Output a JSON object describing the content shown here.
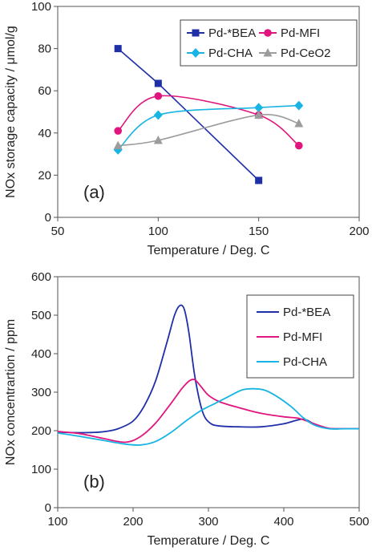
{
  "chart_data": [
    {
      "type": "line",
      "panel_label": "(a)",
      "xlabel": "Temperature / Deg. C",
      "ylabel": "NOx storage capacity / μmol/g",
      "xlim": [
        50,
        200
      ],
      "ylim": [
        0,
        100
      ],
      "xticks": [
        50,
        100,
        150,
        200
      ],
      "yticks": [
        0,
        20,
        40,
        60,
        80,
        100
      ],
      "grid": false,
      "legend": "top-right",
      "series": [
        {
          "name": "Pd-*BEA",
          "color": "#1f2fa8",
          "marker": "square",
          "smooth": false,
          "x": [
            80,
            100,
            150
          ],
          "y": [
            80,
            63.5,
            17.5
          ]
        },
        {
          "name": "Pd-MFI",
          "color": "#e0157d",
          "marker": "circle",
          "smooth": true,
          "x": [
            80,
            100,
            150,
            170
          ],
          "y": [
            41,
            57.5,
            48.5,
            34
          ]
        },
        {
          "name": "Pd-CHA",
          "color": "#18b4e4",
          "marker": "diamond",
          "smooth": true,
          "x": [
            80,
            100,
            150,
            170
          ],
          "y": [
            32,
            48.5,
            52,
            53
          ]
        },
        {
          "name": "Pd-CeO2",
          "color": "#9c9c9c",
          "marker": "triangle",
          "smooth": true,
          "x": [
            80,
            100,
            150,
            170
          ],
          "y": [
            34,
            36.5,
            48.5,
            44.5
          ]
        }
      ]
    },
    {
      "type": "line",
      "panel_label": "(b)",
      "xlabel": "Temperature / Deg. C",
      "ylabel": "NOx concentrartion / ppm",
      "xlim": [
        100,
        500
      ],
      "ylim": [
        0,
        600
      ],
      "xticks": [
        100,
        200,
        300,
        400,
        500
      ],
      "yticks": [
        0,
        100,
        200,
        300,
        400,
        500,
        600
      ],
      "grid": false,
      "legend": "top-right",
      "series": [
        {
          "name": "Pd-*BEA",
          "color": "#1f2fa8",
          "x": [
            100,
            120,
            140,
            160,
            180,
            200,
            215,
            230,
            245,
            255,
            262,
            268,
            274,
            282,
            292,
            302,
            315,
            340,
            370,
            400,
            425,
            440,
            460,
            480,
            500
          ],
          "y": [
            196,
            195,
            195,
            197,
            205,
            225,
            265,
            330,
            430,
            500,
            525,
            515,
            455,
            340,
            250,
            220,
            212,
            210,
            210,
            218,
            230,
            218,
            206,
            205,
            205
          ]
        },
        {
          "name": "Pd-MFI",
          "color": "#e0157d",
          "x": [
            100,
            130,
            160,
            190,
            210,
            230,
            250,
            265,
            275,
            282,
            290,
            300,
            315,
            340,
            370,
            400,
            420,
            440,
            460,
            480,
            500
          ],
          "y": [
            198,
            192,
            180,
            170,
            185,
            220,
            270,
            310,
            330,
            332,
            315,
            292,
            275,
            260,
            245,
            236,
            232,
            218,
            206,
            205,
            205
          ]
        },
        {
          "name": "Pd-CHA",
          "color": "#18b4e4",
          "x": [
            100,
            130,
            160,
            190,
            210,
            230,
            250,
            270,
            290,
            310,
            330,
            345,
            360,
            375,
            390,
            410,
            425,
            440,
            460,
            480,
            500
          ],
          "y": [
            194,
            185,
            175,
            165,
            163,
            172,
            195,
            225,
            252,
            272,
            292,
            306,
            309,
            305,
            290,
            262,
            235,
            215,
            205,
            205,
            205
          ]
        }
      ]
    }
  ]
}
